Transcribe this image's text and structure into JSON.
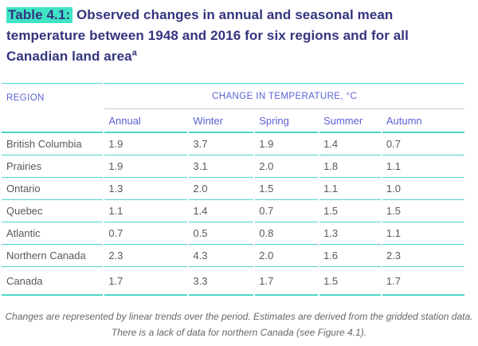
{
  "title": {
    "label": "Table 4.1:",
    "text": "Observed changes in annual and seasonal mean temperature between 1948 and 2016 for six regions and for all Canadian land area",
    "superscript": "a"
  },
  "table": {
    "region_header": "REGION",
    "span_header": "CHANGE IN TEMPERATURE, °C",
    "season_headers": [
      "Annual",
      "Winter",
      "Spring",
      "Summer",
      "Autumn"
    ],
    "rows": [
      {
        "region": "British Columbia",
        "values": [
          "1.9",
          "3.7",
          "1.9",
          "1.4",
          "0.7"
        ]
      },
      {
        "region": "Prairies",
        "values": [
          "1.9",
          "3.1",
          "2.0",
          "1.8",
          "1.1"
        ]
      },
      {
        "region": "Ontario",
        "values": [
          "1.3",
          "2.0",
          "1.5",
          "1.1",
          "1.0"
        ]
      },
      {
        "region": "Quebec",
        "values": [
          "1.1",
          "1.4",
          "0.7",
          "1.5",
          "1.5"
        ]
      },
      {
        "region": "Atlantic",
        "values": [
          "0.7",
          "0.5",
          "0.8",
          "1.3",
          "1.1"
        ]
      },
      {
        "region": "Northern Canada",
        "values": [
          "2.3",
          "4.3",
          "2.0",
          "1.6",
          "2.3"
        ]
      },
      {
        "region": "Canada",
        "values": [
          "1.7",
          "3.3",
          "1.7",
          "1.5",
          "1.7"
        ]
      }
    ]
  },
  "footnote": "Changes are represented by linear trends over the period. Estimates are derived from the gridded station data. There is a lack of data for northern Canada (see Figure 4.1).",
  "colors": {
    "title_text": "#34347f",
    "caption_highlight": "#3fe4c4",
    "header_text": "#5b61d4",
    "body_text": "#58595b",
    "rule_teal": "#4ed8ca",
    "rule_gray": "#cccccc",
    "footnote_text": "#66676a"
  }
}
